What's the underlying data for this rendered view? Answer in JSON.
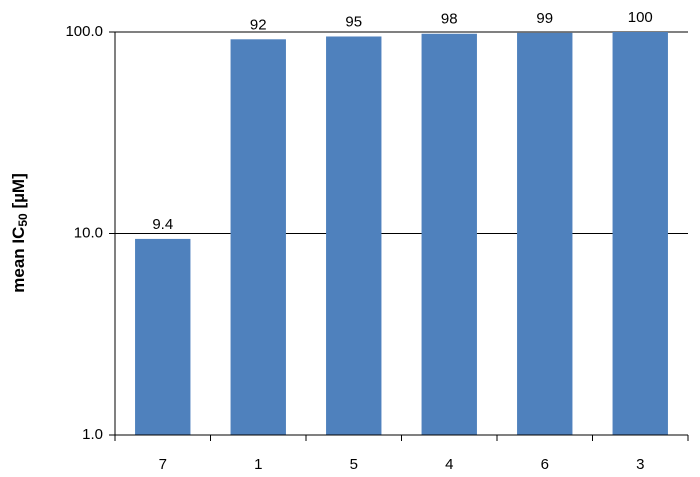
{
  "chart_data": {
    "type": "bar",
    "y_label_parts": [
      "mean IC",
      "50",
      " [µM]"
    ],
    "categories": [
      "7",
      "1",
      "5",
      "4",
      "6",
      "3"
    ],
    "values": [
      9.4,
      92,
      95,
      98,
      99,
      100
    ],
    "color": "#4f81bd",
    "log_scale": true,
    "ylim": [
      1,
      100
    ],
    "yticks": [
      {
        "value": 1,
        "label": "1.0"
      },
      {
        "value": 10,
        "label": "10.0"
      },
      {
        "value": 100,
        "label": "100.0"
      }
    ],
    "grid": true
  }
}
